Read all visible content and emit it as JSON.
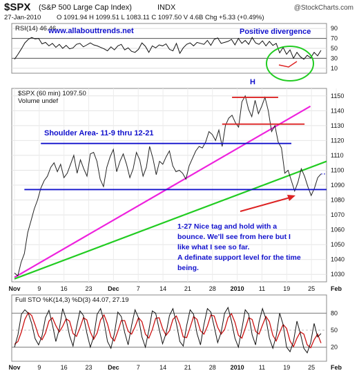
{
  "header": {
    "symbol": "$SPX",
    "name": "(S&P 500 Large Cap Index)",
    "exchange": "INDX",
    "copyright": "@StockCharts.com",
    "date": "27-Jan-2010",
    "quote": "O 1091.94  H 1099.51  L 1083.11  C 1097.50  V 4.6B  Chg +5.33 (+0.49%)"
  },
  "annotations": {
    "website": "www.allabouttrends.net",
    "positive_divergence": "Positive divergence",
    "head": "H",
    "shoulder_area": "Shoulder Area- 11-9 thru 12-21",
    "note": [
      "1-27 Nice tag and hold with a",
      "bounce. We'll see from here but I",
      "like what I see so far.",
      "A definate support level for the time",
      "being."
    ]
  },
  "colors": {
    "price": "#222222",
    "trend_green": "#22cc22",
    "trend_magenta": "#ee22dd",
    "level_blue": "#1111cc",
    "level_red": "#dd2222",
    "annotation_text": "#1111cc",
    "sto_k": "#111111",
    "sto_d": "#cc1111"
  },
  "chart_data": [
    {
      "type": "line",
      "panel": "RSI",
      "legend": "RSI(14) 46.46",
      "ylim": [
        0,
        100
      ],
      "yticks": [
        10,
        30,
        50,
        70,
        90
      ],
      "reference_lines": [
        30,
        70
      ],
      "series": [
        {
          "name": "RSI(14)",
          "values": [
            28,
            38,
            49,
            61,
            68,
            72,
            69,
            70,
            59,
            62,
            55,
            60,
            52,
            58,
            50,
            56,
            49,
            51,
            58,
            60,
            53,
            57,
            61,
            57,
            55,
            52,
            49,
            45,
            53,
            47,
            55,
            58,
            47,
            51,
            44,
            42,
            48,
            61,
            54,
            42,
            55,
            51,
            57,
            55,
            59,
            48,
            45,
            60,
            40,
            51,
            58,
            61,
            55,
            62,
            60,
            58,
            66,
            56,
            68,
            71,
            60,
            62,
            64,
            68,
            57,
            70,
            60,
            66,
            58,
            72,
            61,
            58,
            65,
            55,
            64,
            56,
            60,
            41,
            52,
            38,
            47,
            30,
            42,
            33,
            28,
            36,
            31,
            42,
            35,
            46
          ]
        }
      ]
    },
    {
      "type": "line",
      "panel": "price",
      "legend": "$SPX (60 min) 1097.50",
      "legend2": "Volume undef",
      "ylim": [
        1025,
        1155
      ],
      "yticks": [
        1030,
        1040,
        1050,
        1060,
        1070,
        1080,
        1090,
        1100,
        1110,
        1120,
        1130,
        1140,
        1150
      ],
      "xticks": [
        "Nov",
        "9",
        "16",
        "23",
        "Dec",
        "7",
        "14",
        "21",
        "28",
        "2010",
        "11",
        "19",
        "25",
        "Feb"
      ],
      "series": [
        {
          "name": "$SPX (60 min)",
          "values": [
            1031,
            1029,
            1038,
            1044,
            1058,
            1066,
            1074,
            1080,
            1088,
            1093,
            1096,
            1102,
            1105,
            1099,
            1104,
            1095,
            1098,
            1104,
            1110,
            1098,
            1107,
            1101,
            1096,
            1111,
            1112,
            1106,
            1094,
            1089,
            1102,
            1109,
            1114,
            1099,
            1106,
            1111,
            1104,
            1095,
            1101,
            1112,
            1107,
            1096,
            1102,
            1116,
            1108,
            1097,
            1106,
            1104,
            1109,
            1113,
            1103,
            1099,
            1100,
            1098,
            1094,
            1103,
            1108,
            1113,
            1116,
            1115,
            1119,
            1126,
            1124,
            1120,
            1127,
            1116,
            1130,
            1135,
            1137,
            1132,
            1129,
            1146,
            1150,
            1141,
            1136,
            1147,
            1138,
            1143,
            1149,
            1140,
            1126,
            1130,
            1119,
            1115,
            1098,
            1100,
            1093,
            1086,
            1092,
            1101,
            1096,
            1089,
            1083,
            1088,
            1095,
            1097.5
          ]
        }
      ],
      "trendlines": [
        {
          "color": "green",
          "from": [
            0,
            1027
          ],
          "to": [
            93,
            1106
          ]
        },
        {
          "color": "magenta",
          "from": [
            0,
            1028
          ],
          "to": [
            86,
            1143
          ]
        }
      ],
      "levels": [
        {
          "color": "blue",
          "value": 1118,
          "from": 8,
          "to": 84
        },
        {
          "color": "blue",
          "value": 1087,
          "from": 3,
          "to": 96
        },
        {
          "color": "red",
          "value": 1149,
          "from": 66,
          "to": 80
        },
        {
          "color": "red",
          "value": 1131,
          "from": 63,
          "to": 88
        }
      ]
    },
    {
      "type": "line",
      "panel": "STO",
      "legend": "Full STO %K(14,3) %D(3) 44.07, 27.19",
      "ylim": [
        0,
        100
      ],
      "yticks": [
        20,
        50,
        80
      ],
      "reference_lines": [
        20,
        50,
        80
      ],
      "series": [
        {
          "name": "%K(14,3)",
          "values": [
            20,
            42,
            78,
            86,
            80,
            62,
            35,
            24,
            40,
            72,
            85,
            60,
            30,
            52,
            88,
            70,
            40,
            22,
            55,
            84,
            76,
            45,
            20,
            38,
            78,
            88,
            65,
            30,
            18,
            44,
            82,
            74,
            46,
            24,
            58,
            86,
            72,
            38,
            20,
            50,
            84,
            80,
            52,
            26,
            44,
            76,
            88,
            62,
            30,
            22,
            58,
            86,
            78,
            44,
            24,
            60,
            88,
            82,
            56,
            28,
            46,
            80,
            90,
            66,
            36,
            20,
            52,
            86,
            78,
            42,
            24,
            64,
            88,
            70,
            36,
            18,
            40,
            80,
            60,
            20,
            12,
            30,
            66,
            44,
            18,
            10,
            28,
            62,
            38,
            44
          ]
        },
        {
          "name": "%D(3)",
          "values": [
            25,
            30,
            47,
            69,
            81,
            76,
            59,
            40,
            33,
            45,
            66,
            72,
            58,
            47,
            57,
            70,
            66,
            44,
            39,
            54,
            72,
            68,
            47,
            34,
            45,
            68,
            77,
            61,
            38,
            31,
            48,
            67,
            67,
            48,
            43,
            56,
            72,
            65,
            43,
            36,
            51,
            71,
            72,
            53,
            41,
            49,
            69,
            75,
            60,
            38,
            37,
            55,
            74,
            69,
            49,
            43,
            57,
            77,
            75,
            55,
            43,
            51,
            72,
            79,
            64,
            41,
            36,
            53,
            72,
            69,
            48,
            43,
            59,
            74,
            65,
            41,
            31,
            46,
            60,
            53,
            31,
            21,
            36,
            47,
            43,
            24,
            19,
            33,
            43,
            27.19
          ]
        }
      ]
    }
  ]
}
